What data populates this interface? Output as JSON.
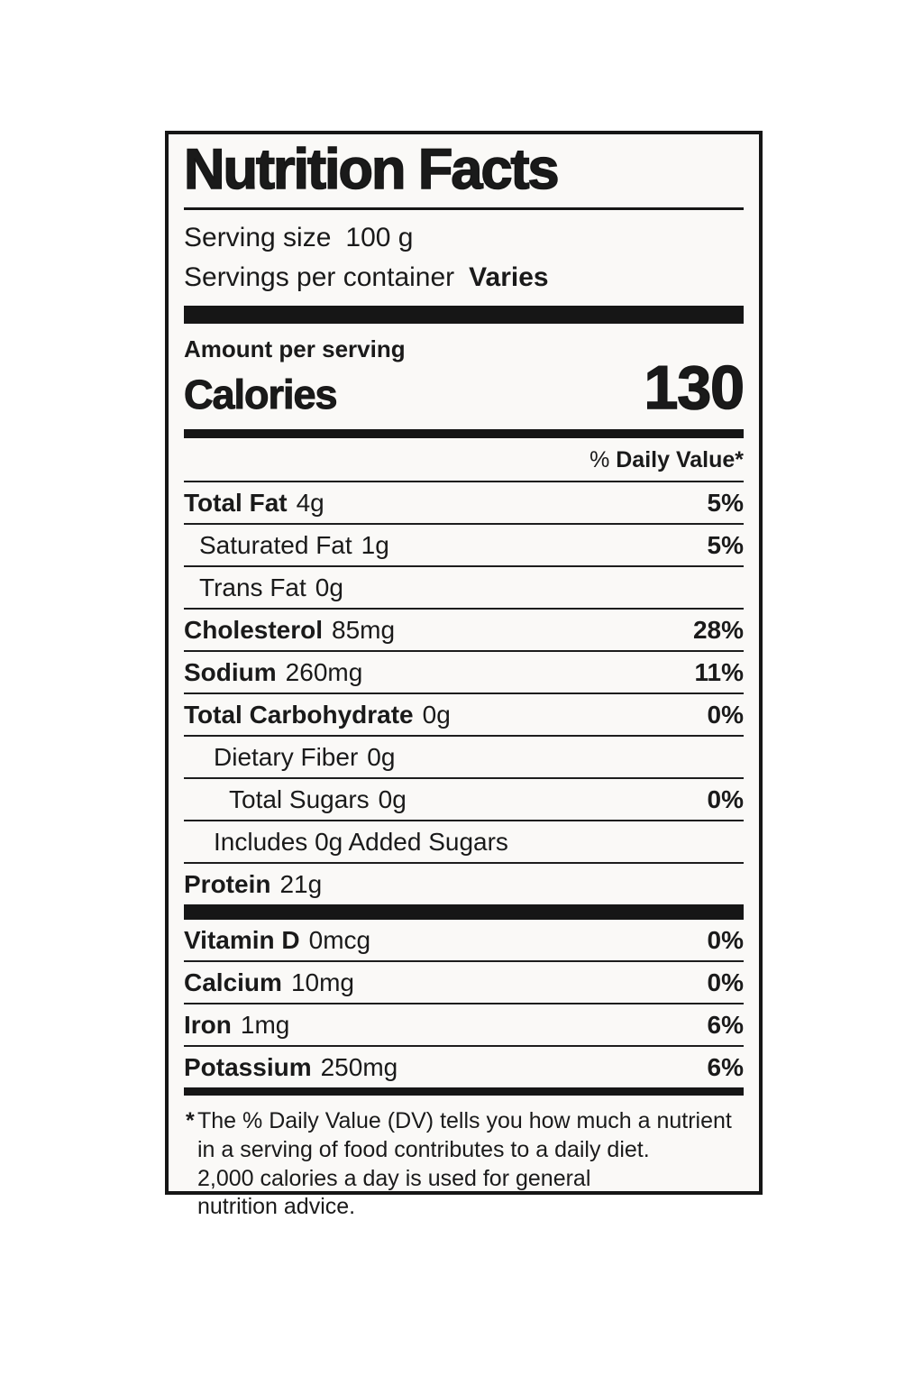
{
  "label": {
    "title": "Nutrition Facts",
    "serving_size_label": "Serving size",
    "serving_size_value": "100 g",
    "servings_per_container_label": "Servings per container",
    "servings_per_container_value": "Varies",
    "amount_per_serving": "Amount per serving",
    "calories_label": "Calories",
    "calories_value": "130",
    "dv_header_percent": "%",
    "dv_header_label": "Daily Value*",
    "nutrients": [
      {
        "label": "Total Fat",
        "amount": "4g",
        "dv": "5%"
      },
      {
        "label": "Saturated Fat",
        "amount": "1g",
        "dv": "5%"
      },
      {
        "label": "Trans Fat",
        "amount": "0g",
        "dv": ""
      },
      {
        "label": "Cholesterol",
        "amount": "85mg",
        "dv": "28%"
      },
      {
        "label": "Sodium",
        "amount": "260mg",
        "dv": "11%"
      },
      {
        "label": "Total Carbohydrate",
        "amount": "0g",
        "dv": "0%"
      },
      {
        "label": "Dietary Fiber",
        "amount": "0g",
        "dv": ""
      },
      {
        "label": "Total Sugars",
        "amount": "0g",
        "dv": "0%"
      },
      {
        "label": "Includes 0g Added Sugars",
        "amount": "",
        "dv": ""
      },
      {
        "label": "Protein",
        "amount": "21g",
        "dv": ""
      }
    ],
    "micronutrients": [
      {
        "label": "Vitamin D",
        "amount": "0mcg",
        "dv": "0%"
      },
      {
        "label": "Calcium",
        "amount": "10mg",
        "dv": "0%"
      },
      {
        "label": "Iron",
        "amount": "1mg",
        "dv": "6%"
      },
      {
        "label": "Potassium",
        "amount": "250mg",
        "dv": "6%"
      }
    ],
    "footnote": {
      "asterisk": "*",
      "lines": [
        "The % Daily Value (DV) tells you how much a nutrient",
        "in a serving of food contributes to a daily diet.",
        "2,000 calories a day is used for general",
        "nutrition advice."
      ]
    },
    "colors": {
      "text": "#1a1a1a",
      "label_background": "#faf9f7",
      "border": "#161616",
      "page_background": "#ffffff"
    }
  }
}
